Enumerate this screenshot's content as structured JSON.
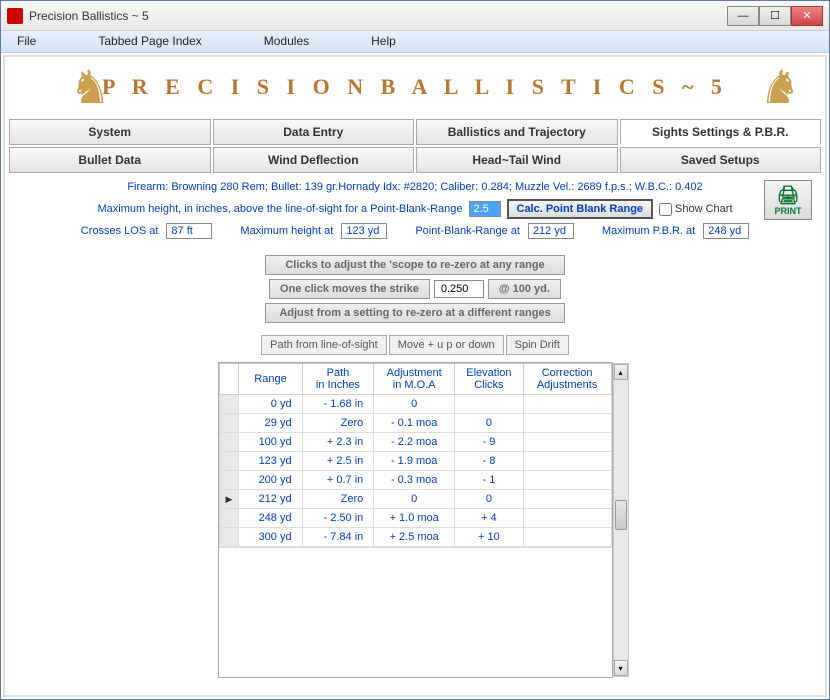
{
  "window": {
    "title": "Precision Ballistics ~ 5"
  },
  "menubar": [
    "File",
    "Tabbed Page Index",
    "Modules",
    "Help"
  ],
  "banner": {
    "title": "P R E C I S I O N   B A L L I S T I C S ~ 5"
  },
  "tabs_row1": [
    "System",
    "Data Entry",
    "Ballistics and Trajectory",
    "Sights Settings & P.B.R."
  ],
  "tabs_row2": [
    "Bullet Data",
    "Wind Deflection",
    "Head~Tail Wind",
    "Saved Setups"
  ],
  "active_tab": "Sights Settings & P.B.R.",
  "info_line": "Firearm: Browning 280 Rem;   Bullet: 139 gr.Hornady   Idx: #2820;   Caliber: 0.284;   Muzzle Vel.: 2689 f.p.s.;   W.B.C.: 0.402",
  "pbr": {
    "max_height_label": "Maximum height, in inches, above the line-of-sight for a Point-Blank-Range",
    "max_height_input": "2.5",
    "calc_button": "Calc. Point Blank Range",
    "show_chart_label": "Show Chart",
    "crosses_los_label": "Crosses LOS at",
    "crosses_los_value": "87 ft",
    "max_height_at_label": "Maximum height at",
    "max_height_at_value": "123 yd",
    "pbr_at_label": "Point-Blank-Range at",
    "pbr_at_value": "212 yd",
    "max_pbr_label": "Maximum P.B.R. at",
    "max_pbr_value": "248 yd"
  },
  "print_label": "PRINT",
  "mid": {
    "btn1": "Clicks to adjust the  'scope to re-zero at any range",
    "btn2": "One click moves the strike",
    "click_value": "0.250",
    "at_100": "@ 100 yd.",
    "btn3": "Adjust from a setting to re-zero at a different ranges"
  },
  "subtabs": [
    "Path from line-of-sight",
    "Move  +  u p or down",
    "Spin Drift"
  ],
  "table": {
    "columns": [
      "Range",
      "Path\nin Inches",
      "Adjustment\nin M.O.A",
      "Elevation\nClicks",
      "Correction\nAdjustments"
    ],
    "rows": [
      {
        "range": "0 yd",
        "path": "- 1.68 in",
        "adj": "0",
        "elev": "",
        "corr": "",
        "sel": false
      },
      {
        "range": "29 yd",
        "path": "Zero",
        "adj": "- 0.1  moa",
        "elev": "0",
        "corr": "",
        "sel": false
      },
      {
        "range": "100 yd",
        "path": "+ 2.3 in",
        "adj": "- 2.2  moa",
        "elev": "- 9",
        "corr": "",
        "sel": false
      },
      {
        "range": "123 yd",
        "path": "+ 2.5 in",
        "adj": "- 1.9  moa",
        "elev": "- 8",
        "corr": "",
        "sel": false
      },
      {
        "range": "200 yd",
        "path": "+ 0.7 in",
        "adj": "- 0.3  moa",
        "elev": "- 1",
        "corr": "",
        "sel": false
      },
      {
        "range": "212 yd",
        "path": "Zero",
        "adj": "0",
        "elev": "0",
        "corr": "",
        "sel": true
      },
      {
        "range": "248 yd",
        "path": "- 2.50 in",
        "adj": "+ 1.0  moa",
        "elev": "+ 4",
        "corr": "",
        "sel": false
      },
      {
        "range": "300 yd",
        "path": "- 7.84 in",
        "adj": "+ 2.5  moa",
        "elev": "+ 10",
        "corr": "",
        "sel": false
      }
    ]
  }
}
